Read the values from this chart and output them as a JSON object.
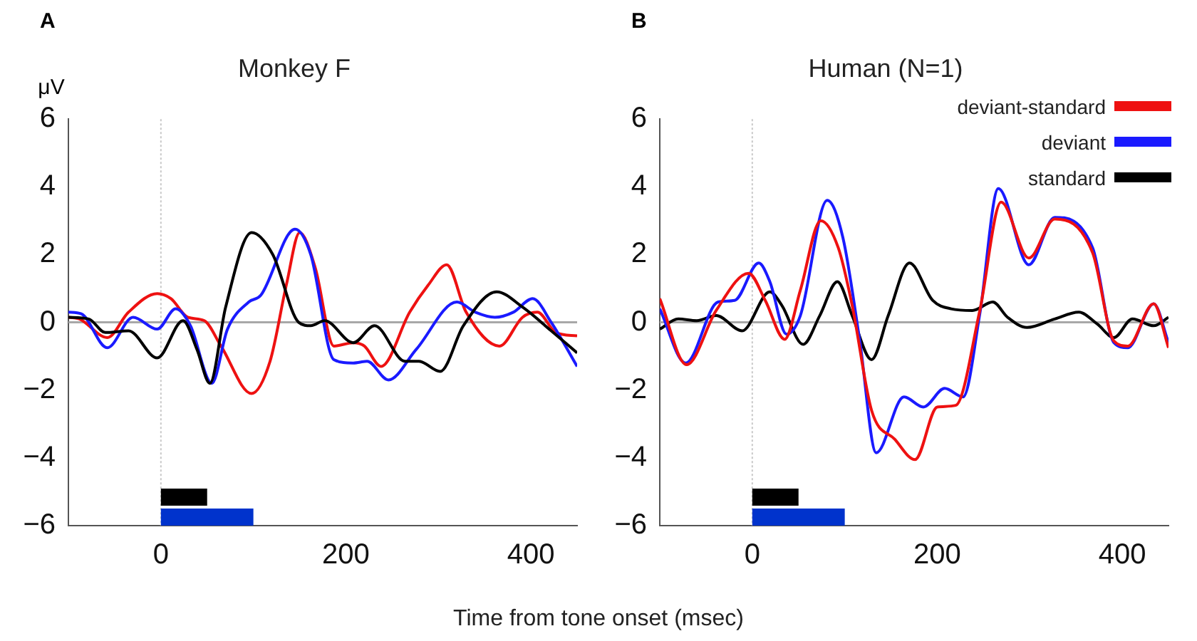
{
  "chart_data": [
    {
      "type": "line",
      "title": "Monkey F",
      "ylabel": "μV",
      "xlabel": "Time from tone onset (msec)",
      "annotations": [
        "A"
      ],
      "xlim": [
        -100,
        450
      ],
      "xticks": [
        0,
        200,
        400
      ],
      "ylim": [
        -6,
        6
      ],
      "yticks": [
        -6,
        -4,
        -2,
        0,
        2,
        4,
        6
      ],
      "ref_lines": [
        {
          "axis": "x",
          "value": 0,
          "color": "#c8c8c8",
          "line_style": "dotted"
        },
        {
          "axis": "y",
          "value": 0,
          "color": "#a8a8a8"
        }
      ],
      "bands": [
        {
          "axis": "x",
          "from": 0,
          "to": 50,
          "color": "#000000"
        },
        {
          "axis": "x",
          "from": 0,
          "to": 100,
          "color": "#0033cc"
        }
      ],
      "series": [
        {
          "color": "#000000",
          "x": [
            -100,
            -78,
            -60,
            -35,
            -4,
            24,
            39,
            53,
            70,
            98,
            121,
            149,
            162,
            177,
            208,
            231,
            264,
            279,
            302,
            327,
            363,
            391,
            422,
            450
          ],
          "values": [
            0.15,
            0.1,
            -0.3,
            -0.25,
            -1.05,
            0.05,
            -0.8,
            -1.8,
            0.45,
            2.65,
            2.0,
            0,
            -0.1,
            0.05,
            -0.6,
            -0.1,
            -1.15,
            -1.15,
            -1.45,
            -0.1,
            0.9,
            0.45,
            -0.25,
            -0.9
          ]
        },
        {
          "color": "#1a1aff",
          "x": [
            -100,
            -86,
            -58,
            -30,
            -4,
            16,
            32,
            55,
            72,
            95,
            108,
            145,
            162,
            187,
            208,
            223,
            246,
            276,
            320,
            340,
            361,
            381,
            402,
            422,
            450
          ],
          "values": [
            0.3,
            0.25,
            -0.75,
            0.15,
            -0.2,
            0.4,
            -0.1,
            -1.8,
            -0.2,
            0.6,
            0.8,
            2.75,
            2.0,
            -1.1,
            -1.2,
            -1.15,
            -1.7,
            -0.8,
            0.6,
            0.3,
            0.15,
            0.3,
            0.7,
            0,
            -1.3
          ]
        },
        {
          "color": "#ee1111",
          "x": [
            -100,
            -88,
            -58,
            -35,
            -4,
            11,
            29,
            47,
            65,
            98,
            118,
            136,
            150,
            167,
            187,
            208,
            220,
            238,
            269,
            289,
            309,
            330,
            366,
            391,
            407,
            427,
            450
          ],
          "values": [
            0.15,
            0.1,
            -0.45,
            0.3,
            0.85,
            0.7,
            0.15,
            0.05,
            -0.7,
            -2.1,
            -1.15,
            1.15,
            2.65,
            1.6,
            -0.7,
            -0.6,
            -0.7,
            -1.3,
            0.3,
            1.1,
            1.7,
            0.3,
            -0.7,
            0.15,
            0.3,
            -0.3,
            -0.4
          ]
        }
      ]
    },
    {
      "type": "line",
      "title": "Human (N=1)",
      "annotations": [
        "B"
      ],
      "legend": "top right",
      "xlim": [
        -100,
        450
      ],
      "xticks": [
        0,
        200,
        400
      ],
      "ylim": [
        -6,
        6
      ],
      "yticks": [
        -6,
        -4,
        -2,
        0,
        2,
        4,
        6
      ],
      "ref_lines": [
        {
          "axis": "x",
          "value": 0,
          "color": "#c8c8c8",
          "line_style": "dotted"
        },
        {
          "axis": "y",
          "value": 0,
          "color": "#a8a8a8"
        }
      ],
      "bands": [
        {
          "axis": "x",
          "from": 0,
          "to": 50,
          "color": "#000000"
        },
        {
          "axis": "x",
          "from": 0,
          "to": 100,
          "color": "#0033cc"
        }
      ],
      "series": [
        {
          "name": "deviant-standard",
          "color": "#ee1111",
          "x": [
            -100,
            -71,
            -39,
            -4,
            14,
            35,
            52,
            74,
            93,
            108,
            129,
            154,
            176,
            200,
            220,
            246,
            269,
            299,
            327,
            368,
            391,
            406,
            434,
            450
          ],
          "values": [
            0.7,
            -1.25,
            0.35,
            1.45,
            0.65,
            -0.5,
            0.95,
            3.0,
            2.2,
            0.5,
            -2.6,
            -3.45,
            -4.05,
            -2.5,
            -2.45,
            0.35,
            3.55,
            1.9,
            3.05,
            2.05,
            -0.55,
            -0.7,
            0.55,
            -0.75
          ]
        },
        {
          "name": "deviant",
          "color": "#1a1aff",
          "x": [
            -100,
            -72,
            -37,
            -19,
            7,
            19,
            37,
            52,
            81,
            98,
            116,
            134,
            164,
            185,
            208,
            228,
            246,
            266,
            299,
            327,
            368,
            391,
            406,
            434,
            450
          ],
          "values": [
            0.4,
            -1.2,
            0.6,
            0.65,
            1.75,
            1.2,
            -0.35,
            0.2,
            3.6,
            2.5,
            -0.5,
            -3.85,
            -2.2,
            -2.5,
            -1.95,
            -2.2,
            0.25,
            3.95,
            1.7,
            3.1,
            2.2,
            -0.6,
            -0.75,
            0.55,
            -0.6
          ]
        },
        {
          "name": "standard",
          "color": "#000000",
          "x": [
            -100,
            -80,
            -60,
            -39,
            -11,
            19,
            32,
            55,
            73,
            92,
            108,
            129,
            147,
            170,
            195,
            215,
            238,
            260,
            276,
            297,
            327,
            353,
            373,
            391,
            411,
            434,
            450
          ],
          "values": [
            -0.2,
            0.1,
            0.05,
            0.2,
            -0.25,
            0.9,
            0.5,
            -0.65,
            0.2,
            1.2,
            0.2,
            -1.1,
            0.2,
            1.75,
            0.65,
            0.4,
            0.35,
            0.6,
            0.15,
            -0.15,
            0.1,
            0.3,
            -0.05,
            -0.45,
            0.1,
            -0.1,
            0.15
          ]
        }
      ]
    }
  ]
}
